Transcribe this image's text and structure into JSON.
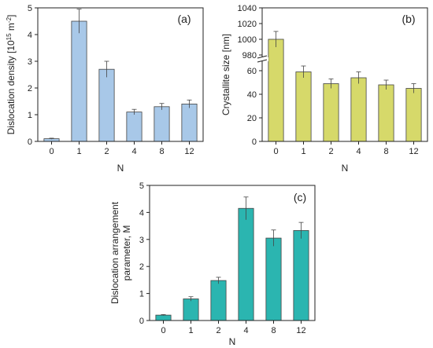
{
  "chart_data": [
    {
      "panel_label": "(a)",
      "type": "bar",
      "categories": [
        "0",
        "1",
        "2",
        "4",
        "8",
        "12"
      ],
      "values": [
        0.1,
        4.5,
        2.7,
        1.1,
        1.3,
        1.4
      ],
      "errors": [
        0.02,
        0.45,
        0.3,
        0.1,
        0.12,
        0.15
      ],
      "xlabel": "N",
      "ylabel": "Dislocation density [10",
      "ylabel_sup1": "15",
      "ylabel_mid": " m",
      "ylabel_sup2": "-2",
      "ylabel_end": "]",
      "ylim": [
        0,
        5
      ],
      "yticks": [
        "0",
        "1",
        "2",
        "3",
        "4",
        "5"
      ],
      "color": "#a8c8e8",
      "grid": false
    },
    {
      "panel_label": "(b)",
      "type": "bar",
      "categories": [
        "0",
        "1",
        "2",
        "4",
        "8",
        "12"
      ],
      "values": [
        1000,
        59,
        49,
        54,
        48,
        45
      ],
      "errors": [
        10,
        5,
        4,
        5,
        4,
        4
      ],
      "xlabel": "N",
      "ylabel": "Crystallite size [nm]",
      "axis_break": [
        70,
        975
      ],
      "ylim_lower": [
        0,
        70
      ],
      "ylim_upper": [
        975,
        1040
      ],
      "yticks_lower": [
        "0",
        "20",
        "40",
        "60"
      ],
      "yticks_upper": [
        "980",
        "1000",
        "1020",
        "1040"
      ],
      "color": "#d6d96a",
      "grid": false
    },
    {
      "panel_label": "(c)",
      "type": "bar",
      "categories": [
        "0",
        "1",
        "2",
        "4",
        "8",
        "12"
      ],
      "values": [
        0.2,
        0.8,
        1.48,
        4.15,
        3.05,
        3.33
      ],
      "errors": [
        0.02,
        0.08,
        0.12,
        0.42,
        0.3,
        0.3
      ],
      "xlabel": "N",
      "ylabel_line1": "Dislocation arrangement",
      "ylabel_line2": "parameter, M",
      "ylim": [
        0,
        5
      ],
      "yticks": [
        "0",
        "1",
        "2",
        "3",
        "4",
        "5"
      ],
      "color": "#2bb5b0",
      "grid": false
    }
  ]
}
